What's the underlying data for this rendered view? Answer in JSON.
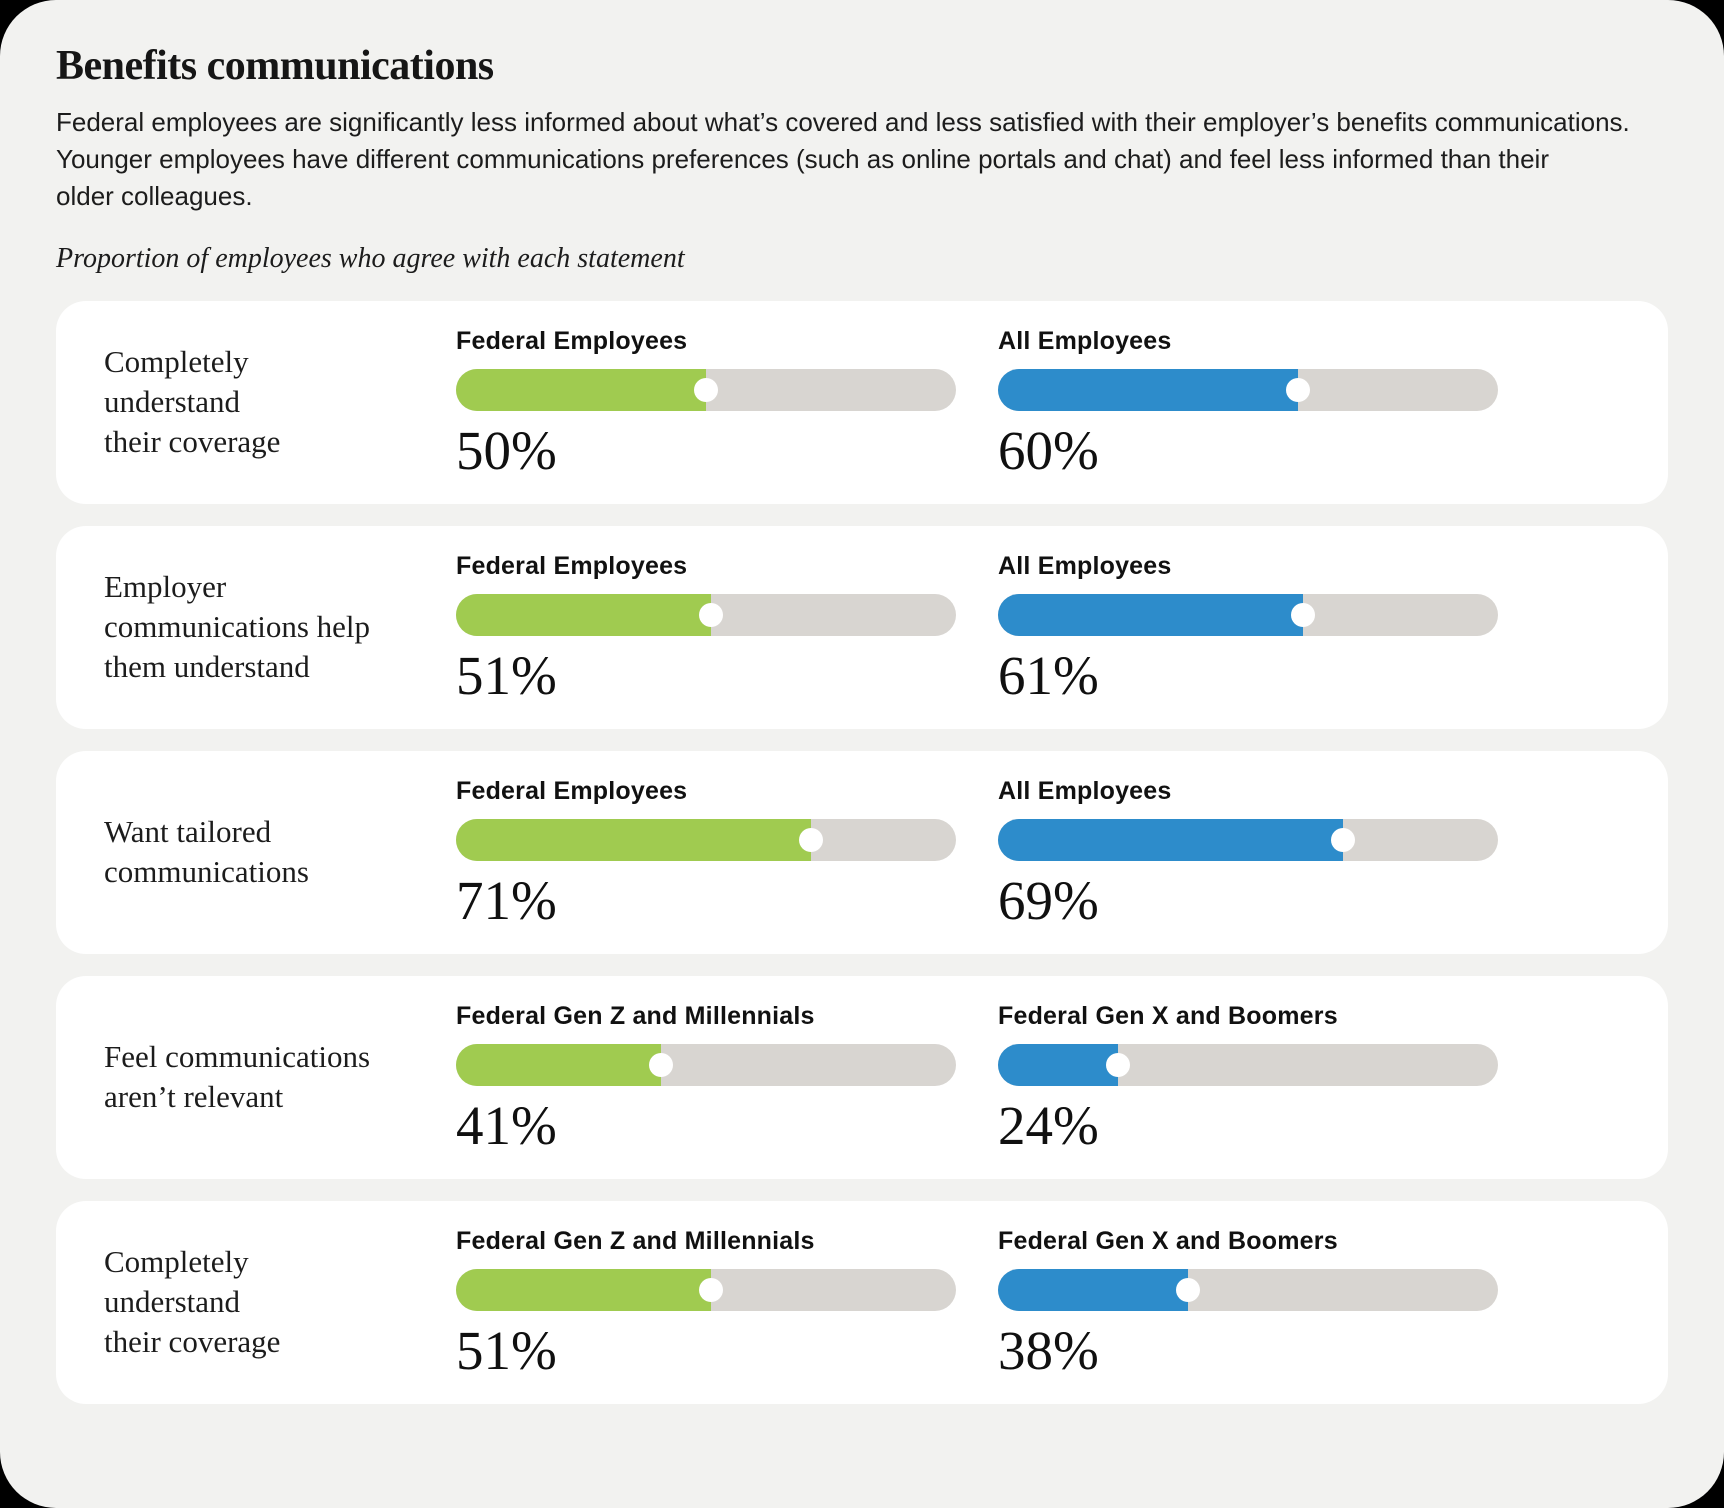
{
  "header": {
    "title": "Benefits communications",
    "description": "Federal employees are significantly less informed about what’s covered and less satisfied with their employer’s benefits communications.\nYounger employees have different communications preferences (such as online portals and chat) and feel less informed than their\nolder colleagues.",
    "subtitle": "Proportion of employees who agree with each statement"
  },
  "colors": {
    "green": "#A0CB50",
    "blue": "#2D8CCB",
    "track": "#D8D5D1",
    "page_bg": "#F2F2F0",
    "card_bg": "#FFFFFF",
    "outside_bg": "#000000"
  },
  "chart_data": {
    "type": "bar",
    "title": "Benefits communications",
    "subtitle": "Proportion of employees who agree with each statement",
    "unit": "%",
    "xlim": [
      0,
      100
    ],
    "legend_position": "above-each-bar",
    "grid": false,
    "rows": [
      {
        "statement": "Completely\nunderstand\ntheir coverage",
        "bars": [
          {
            "label": "Federal Employees",
            "value": 50,
            "display": "50%",
            "color": "#A0CB50"
          },
          {
            "label": "All Employees",
            "value": 60,
            "display": "60%",
            "color": "#2D8CCB"
          }
        ]
      },
      {
        "statement": "Employer\ncommunications help\nthem understand",
        "bars": [
          {
            "label": "Federal Employees",
            "value": 51,
            "display": "51%",
            "color": "#A0CB50"
          },
          {
            "label": "All Employees",
            "value": 61,
            "display": "61%",
            "color": "#2D8CCB"
          }
        ]
      },
      {
        "statement": "Want tailored\ncommunications",
        "bars": [
          {
            "label": "Federal Employees",
            "value": 71,
            "display": "71%",
            "color": "#A0CB50"
          },
          {
            "label": "All Employees",
            "value": 69,
            "display": "69%",
            "color": "#2D8CCB"
          }
        ]
      },
      {
        "statement": "Feel communications\naren’t relevant",
        "bars": [
          {
            "label": "Federal Gen Z and Millennials",
            "value": 41,
            "display": "41%",
            "color": "#A0CB50"
          },
          {
            "label": "Federal Gen X and Boomers",
            "value": 24,
            "display": "24%",
            "color": "#2D8CCB"
          }
        ]
      },
      {
        "statement": "Completely\nunderstand\ntheir coverage",
        "bars": [
          {
            "label": "Federal Gen Z and Millennials",
            "value": 51,
            "display": "51%",
            "color": "#A0CB50"
          },
          {
            "label": "Federal Gen X and Boomers",
            "value": 38,
            "display": "38%",
            "color": "#2D8CCB"
          }
        ]
      }
    ]
  }
}
